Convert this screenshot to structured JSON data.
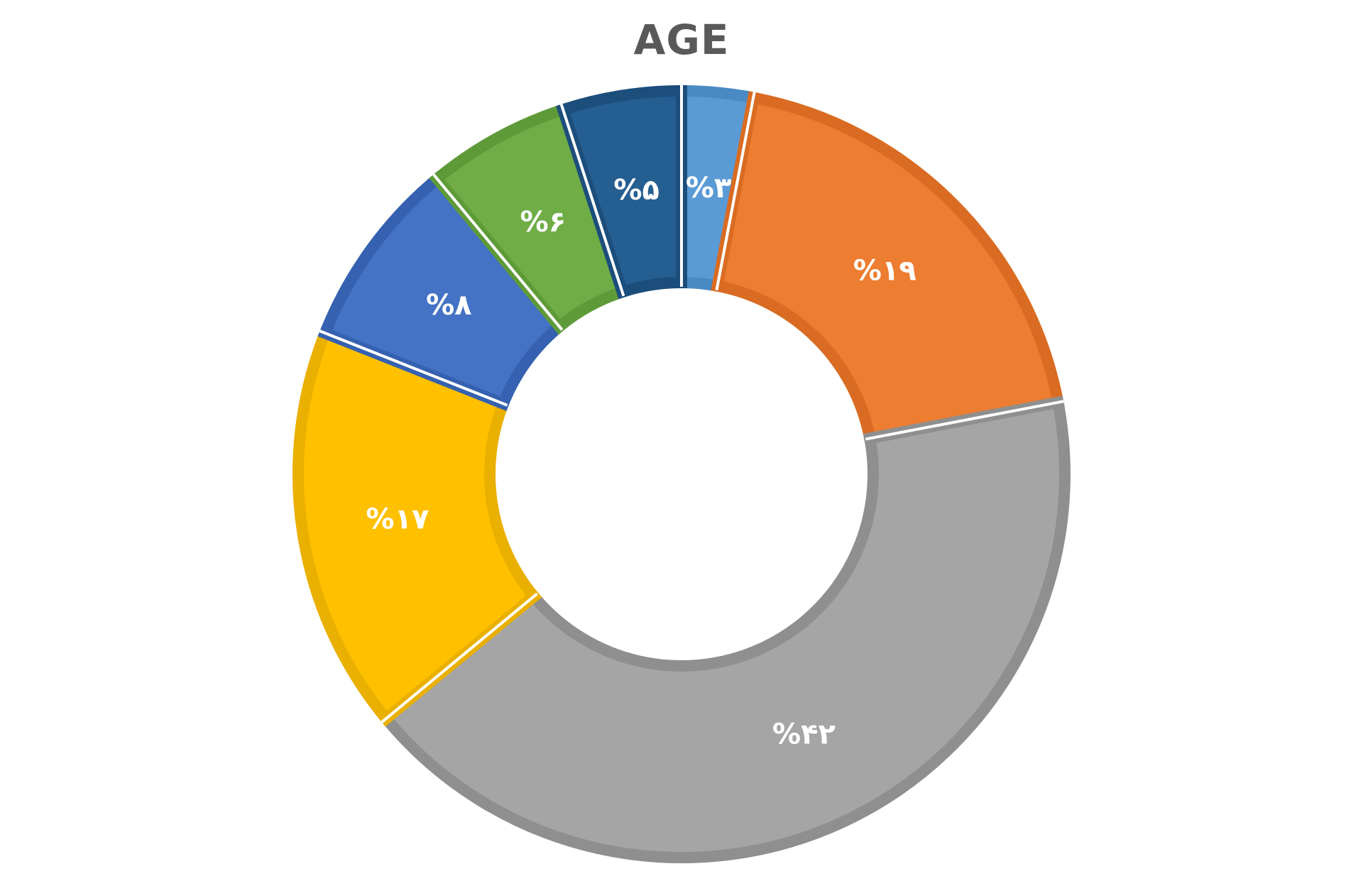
{
  "chart_data": {
    "type": "pie",
    "title": "AGE",
    "categories": [
      "",
      "",
      "",
      "",
      "",
      "",
      ""
    ],
    "values": [
      3,
      19,
      42,
      17,
      8,
      6,
      5
    ],
    "data_labels": [
      "%۳",
      "%۱۹",
      "%۴۲",
      "%۱۷",
      "%۸",
      "%۶",
      "%۵"
    ],
    "colors": [
      "#5B9BD5",
      "#ED7D31",
      "#A5A5A5",
      "#FFC000",
      "#4472C4",
      "#70AD47",
      "#255E91"
    ],
    "border_colors": [
      "#4A8AC4",
      "#D96C22",
      "#8F8F8F",
      "#EAB000",
      "#3561B0",
      "#5E9B38",
      "#1C4E7C"
    ],
    "style": "doughnut",
    "legend": "none"
  }
}
